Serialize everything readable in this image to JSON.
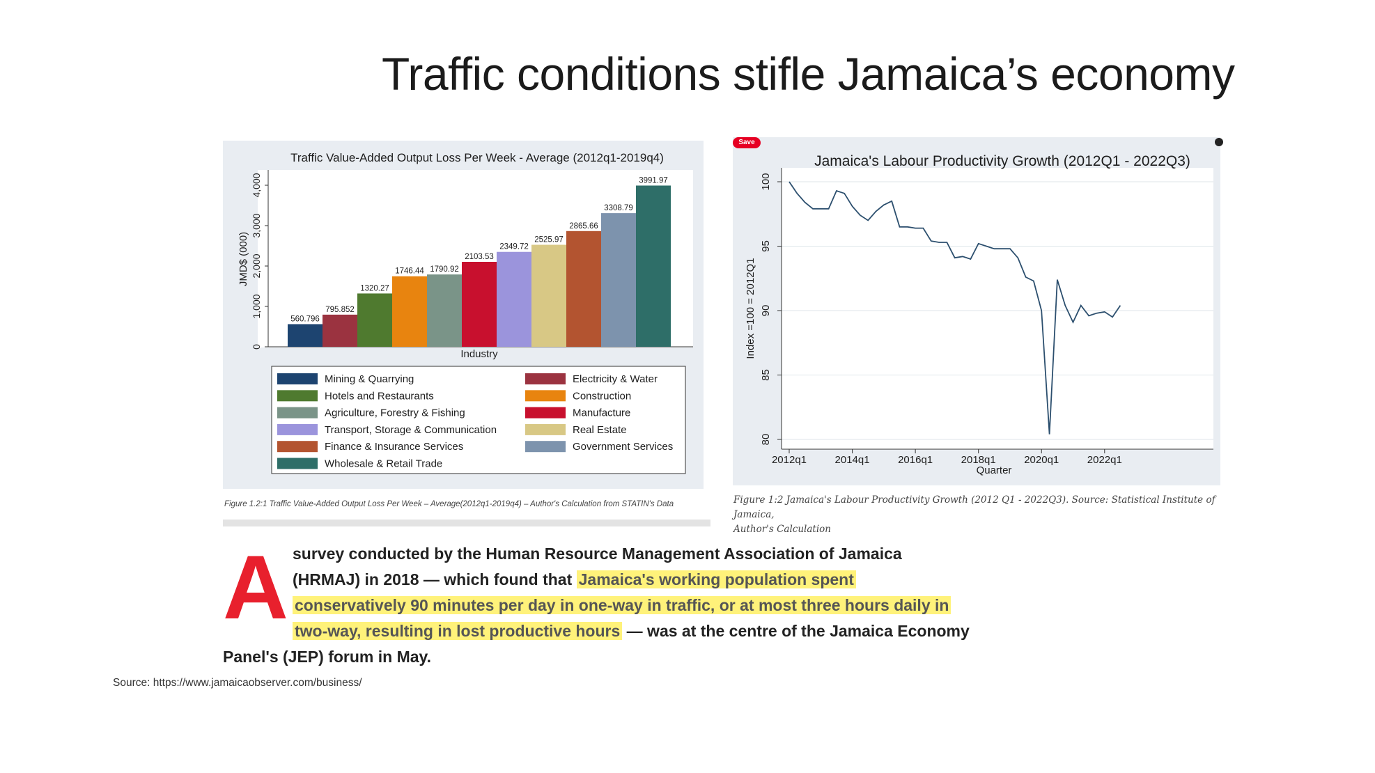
{
  "title": "Traffic conditions stifle Jamaica’s economy",
  "save_label": "Save",
  "chart_data": [
    {
      "type": "bar",
      "title": "Traffic Value-Added Output Loss Per Week - Average (2012q1-2019q4)",
      "xlabel": "Industry",
      "ylabel": "JMD$ (000)",
      "ylim": [
        0,
        4000
      ],
      "yticks": [
        "0",
        "1,000",
        "2,000",
        "3,000",
        "4,000"
      ],
      "categories": [
        "Mining & Quarrying",
        "Electricity & Water",
        "Hotels and Restaurants",
        "Construction",
        "Agriculture, Forestry & Fishing",
        "Manufacture",
        "Transport, Storage & Communication",
        "Real Estate",
        "Finance & Insurance Services",
        "Government Services",
        "Wholesale & Retail Trade"
      ],
      "values": [
        560.796,
        795.852,
        1320.27,
        1746.44,
        1790.92,
        2103.53,
        2349.72,
        2525.97,
        2865.66,
        3308.79,
        3991.97
      ],
      "value_labels": [
        "560.796",
        "795.852",
        "1320.27",
        "1746.44",
        "1790.92",
        "2103.53",
        "2349.72",
        "2525.97",
        "2865.66",
        "3308.79",
        "3991.97"
      ],
      "colors": [
        "#1d4470",
        "#9b3340",
        "#4f7a2f",
        "#e8840f",
        "#7a9488",
        "#c8102e",
        "#9b94dc",
        "#d8c885",
        "#b35430",
        "#7d93ad",
        "#2e6e68"
      ],
      "legend_order": [
        0,
        1,
        2,
        3,
        4,
        5,
        6,
        7,
        8,
        9,
        10
      ],
      "legend": "below"
    },
    {
      "type": "line",
      "title": "Jamaica's Labour Productivity Growth (2012Q1 - 2022Q3)",
      "xlabel": "Quarter",
      "ylabel": "Index =100 = 2012Q1",
      "ylim": [
        80,
        100
      ],
      "yticks": [
        "80",
        "85",
        "90",
        "95",
        "100"
      ],
      "xticks": [
        "2012q1",
        "2014q1",
        "2016q1",
        "2018q1",
        "2020q1",
        "2022q1"
      ],
      "series": [
        {
          "values": [
            100,
            99.1,
            98.4,
            97.9,
            97.9,
            97.9,
            99.3,
            99.1,
            98.1,
            97.4,
            97.0,
            97.7,
            98.2,
            98.5,
            96.5,
            96.5,
            96.4,
            96.4,
            95.4,
            95.3,
            95.3,
            94.1,
            94.2,
            94.0,
            95.2,
            95.0,
            94.8,
            94.8,
            94.8,
            94.1,
            92.6,
            92.3,
            90.0,
            80.4,
            92.4,
            90.4,
            89.1,
            90.4,
            89.6,
            89.8,
            89.9,
            89.5,
            90.4
          ]
        }
      ],
      "grid": true
    }
  ],
  "caption1": "Figure 1.2:1 Traffic Value-Added Output Loss Per Week – Average(2012q1-2019q4) – Author's Calculation from STATIN's Data",
  "caption2_line1": "Figure 1:2 Jamaica's Labour Productivity Growth (2012 Q1 - 2022Q3). Source: Statistical Institute of Jamaica,",
  "caption2_line2": "Author's Calculation",
  "article": {
    "dropcap": "A",
    "line1": "survey conducted by the Human Resource Management Association of Jamaica",
    "line2_plain": "(HRMAJ) in 2018 — which found that ",
    "line2_hl": "Jamaica's working population spent",
    "line3_hl": "conservatively 90 minutes per day in one-way in traffic, or at most three hours daily in",
    "line4_hl": "two-way, resulting in lost productive hours",
    "line4_plain": " — was at the centre of the Jamaica Economy",
    "line5": "Panel's (JEP) forum in May."
  },
  "source": "Source: https://www.jamaicaobserver.com/business/"
}
